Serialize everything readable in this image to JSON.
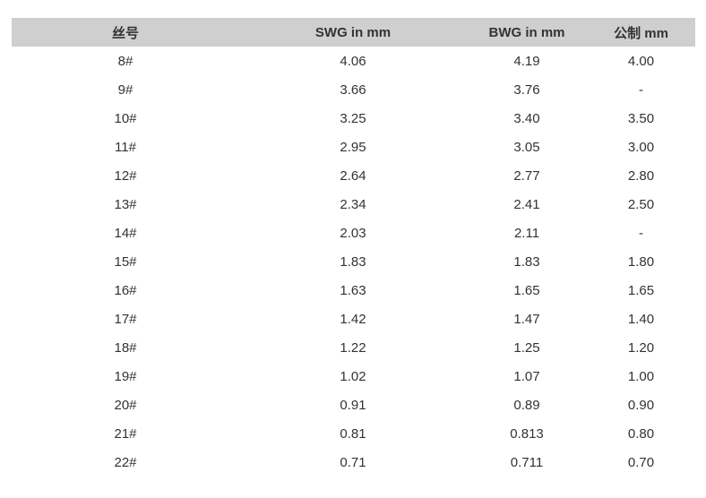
{
  "table": {
    "headers": [
      "丝号",
      "SWG in mm",
      "BWG in mm",
      "公制 mm"
    ],
    "rows": [
      [
        "8#",
        "4.06",
        "4.19",
        "4.00"
      ],
      [
        "9#",
        "3.66",
        "3.76",
        "-"
      ],
      [
        "10#",
        "3.25",
        "3.40",
        "3.50"
      ],
      [
        "11#",
        "2.95",
        "3.05",
        "3.00"
      ],
      [
        "12#",
        "2.64",
        "2.77",
        "2.80"
      ],
      [
        "13#",
        "2.34",
        "2.41",
        "2.50"
      ],
      [
        "14#",
        "2.03",
        "2.11",
        "-"
      ],
      [
        "15#",
        "1.83",
        "1.83",
        "1.80"
      ],
      [
        "16#",
        "1.63",
        "1.65",
        "1.65"
      ],
      [
        "17#",
        "1.42",
        "1.47",
        "1.40"
      ],
      [
        "18#",
        "1.22",
        "1.25",
        "1.20"
      ],
      [
        "19#",
        "1.02",
        "1.07",
        "1.00"
      ],
      [
        "20#",
        "0.91",
        "0.89",
        "0.90"
      ],
      [
        "21#",
        "0.81",
        "0.813",
        "0.80"
      ],
      [
        "22#",
        "0.71",
        "0.711",
        "0.70"
      ]
    ]
  },
  "colors": {
    "header_bg": "#cfcfcf",
    "text": "#333333"
  }
}
